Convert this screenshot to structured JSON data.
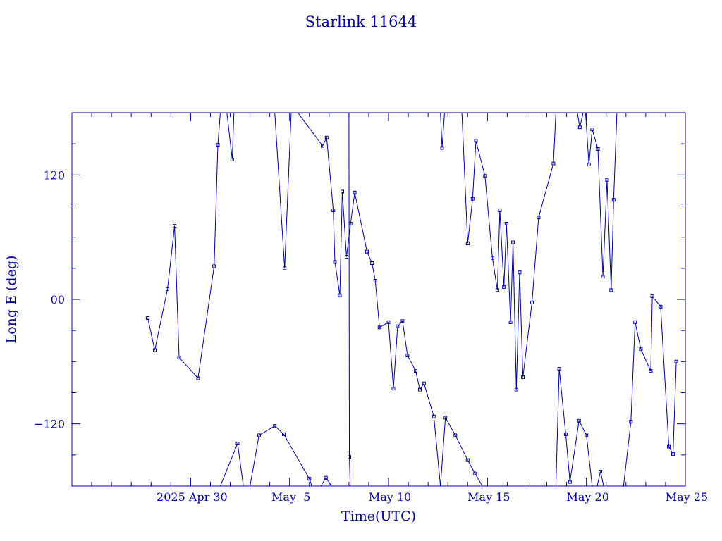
{
  "chart_data": {
    "type": "line",
    "title": "Starlink 11644",
    "xlabel": "Time(UTC)",
    "ylabel": "Long E (deg)",
    "xlim": [
      "2025-04-24",
      "2025-05-25"
    ],
    "ylim": [
      -180,
      180
    ],
    "x_ticks": [
      "2025-04-30",
      "2025-05-05",
      "2025-05-10",
      "2025-05-15",
      "2025-05-20",
      "2025-05-25"
    ],
    "x_tick_labels": [
      "2025 Apr 30",
      "May  5",
      "May 10",
      "May 15",
      "May 20",
      "May 25"
    ],
    "y_ticks": [
      -120,
      0,
      120
    ],
    "y_tick_labels": [
      "−120",
      "00",
      "120"
    ],
    "grid": false,
    "color": "#00009b",
    "marker": "open-square",
    "series": [
      {
        "points": [
          [
            "2025-04-27T20:00",
            -18
          ],
          [
            "2025-04-28T04:30",
            -49
          ],
          [
            "2025-04-28T20:00",
            10
          ],
          [
            "2025-04-29T04:30",
            71
          ],
          [
            "2025-04-29T10:00",
            -56
          ],
          [
            "2025-04-30T09:00",
            -76
          ],
          [
            "2025-05-01T04:30",
            32
          ],
          [
            "2025-05-01T09:00",
            149
          ],
          [
            "2025-05-01T12:00",
            180
          ]
        ]
      },
      {
        "points": [
          [
            "2025-05-01T20:00",
            180
          ],
          [
            "2025-05-02T02:30",
            135
          ],
          [
            "2025-05-02T04:30",
            180
          ]
        ]
      },
      {
        "points": [
          [
            "2025-05-04T06:00",
            180
          ],
          [
            "2025-05-04T18:00",
            30
          ],
          [
            "2025-05-05T02:00",
            180
          ]
        ]
      },
      {
        "points": [
          [
            "2025-05-05T10:00",
            180
          ],
          [
            "2025-05-06T16:00",
            148
          ],
          [
            "2025-05-06T21:00",
            156
          ],
          [
            "2025-05-07T05:00",
            86
          ],
          [
            "2025-05-07T07:00",
            36
          ],
          [
            "2025-05-07T13:00",
            4
          ],
          [
            "2025-05-07T16:00",
            104
          ],
          [
            "2025-05-07T21:00",
            41
          ],
          [
            "2025-05-08T02:00",
            73
          ],
          [
            "2025-05-08T07:00",
            103
          ],
          [
            "2025-05-08T22:00",
            46
          ],
          [
            "2025-05-09T04:00",
            35
          ],
          [
            "2025-05-09T08:00",
            18
          ],
          [
            "2025-05-09T13:00",
            -27
          ],
          [
            "2025-05-10T00:00",
            -22
          ],
          [
            "2025-05-10T06:00",
            -86
          ],
          [
            "2025-05-10T11:00",
            -26
          ],
          [
            "2025-05-10T17:00",
            -21
          ],
          [
            "2025-05-10T23:00",
            -54
          ],
          [
            "2025-05-11T09:00",
            -69
          ],
          [
            "2025-05-11T14:00",
            -87
          ],
          [
            "2025-05-11T19:00",
            -81
          ],
          [
            "2025-05-12T07:00",
            -113
          ],
          [
            "2025-05-12T15:00",
            -180
          ]
        ]
      },
      {
        "points": [
          [
            "2025-05-12T15:00",
            180
          ],
          [
            "2025-05-12T17:00",
            146
          ],
          [
            "2025-05-12T20:00",
            180
          ]
        ]
      },
      {
        "points": [
          [
            "2025-05-13T17:00",
            180
          ],
          [
            "2025-05-14T00:00",
            54
          ],
          [
            "2025-05-14T06:00",
            97
          ],
          [
            "2025-05-14T10:00",
            153
          ],
          [
            "2025-05-14T21:00",
            119
          ],
          [
            "2025-05-15T06:00",
            40
          ],
          [
            "2025-05-15T12:00",
            9
          ],
          [
            "2025-05-15T15:00",
            86
          ],
          [
            "2025-05-15T20:00",
            12
          ],
          [
            "2025-05-15T23:00",
            73
          ],
          [
            "2025-05-16T04:00",
            -22
          ],
          [
            "2025-05-16T07:00",
            55
          ],
          [
            "2025-05-16T11:00",
            -87
          ],
          [
            "2025-05-16T15:00",
            26
          ],
          [
            "2025-05-16T19:00",
            -75
          ],
          [
            "2025-05-17T06:00",
            -3
          ],
          [
            "2025-05-17T14:00",
            79
          ],
          [
            "2025-05-18T08:00",
            131
          ],
          [
            "2025-05-18T11:00",
            180
          ]
        ]
      },
      {
        "points": [
          [
            "2025-05-19T13:00",
            180
          ],
          [
            "2025-05-19T16:00",
            166
          ],
          [
            "2025-05-19T20:00",
            180
          ]
        ]
      },
      {
        "points": [
          [
            "2025-05-19T23:00",
            180
          ],
          [
            "2025-05-20T03:00",
            130
          ],
          [
            "2025-05-20T07:00",
            164
          ],
          [
            "2025-05-20T14:00",
            145
          ],
          [
            "2025-05-20T20:00",
            22
          ],
          [
            "2025-05-21T01:00",
            115
          ],
          [
            "2025-05-21T06:00",
            9
          ],
          [
            "2025-05-21T09:00",
            96
          ],
          [
            "2025-05-21T13:00",
            180
          ]
        ]
      },
      {
        "points": [
          [
            "2025-05-08T00:00",
            180
          ],
          [
            "2025-05-08T00:30",
            -152
          ],
          [
            "2025-05-08T01:30",
            -180
          ]
        ]
      },
      {
        "points": [
          [
            "2025-05-01T12:00",
            -180
          ],
          [
            "2025-05-02T09:00",
            -139
          ],
          [
            "2025-05-02T16:00",
            -180
          ]
        ]
      },
      {
        "points": [
          [
            "2025-05-03T00:00",
            -180
          ],
          [
            "2025-05-03T11:00",
            -131
          ],
          [
            "2025-05-04T06:00",
            -122
          ],
          [
            "2025-05-04T17:00",
            -130
          ],
          [
            "2025-05-06T00:00",
            -173
          ],
          [
            "2025-05-06T03:00",
            -180
          ]
        ]
      },
      {
        "points": [
          [
            "2025-05-06T14:00",
            -180
          ],
          [
            "2025-05-06T20:00",
            -172
          ],
          [
            "2025-05-07T03:00",
            -180
          ]
        ]
      },
      {
        "points": [
          [
            "2025-05-12T15:00",
            -180
          ],
          [
            "2025-05-12T21:00",
            -114
          ],
          [
            "2025-05-13T09:00",
            -131
          ],
          [
            "2025-05-14T00:00",
            -155
          ],
          [
            "2025-05-14T09:00",
            -168
          ],
          [
            "2025-05-14T18:00",
            -180
          ]
        ]
      },
      {
        "points": [
          [
            "2025-05-18T11:00",
            -180
          ],
          [
            "2025-05-18T15:00",
            -67
          ],
          [
            "2025-05-18T23:00",
            -130
          ],
          [
            "2025-05-19T04:00",
            -176
          ],
          [
            "2025-05-19T15:00",
            -117
          ],
          [
            "2025-05-20T00:00",
            -131
          ],
          [
            "2025-05-20T07:00",
            -180
          ]
        ]
      },
      {
        "points": [
          [
            "2025-05-20T13:00",
            -180
          ],
          [
            "2025-05-20T17:00",
            -166
          ],
          [
            "2025-05-20T21:00",
            -180
          ]
        ]
      },
      {
        "points": [
          [
            "2025-05-21T21:00",
            -180
          ],
          [
            "2025-05-22T06:00",
            -118
          ],
          [
            "2025-05-22T11:00",
            -22
          ],
          [
            "2025-05-22T18:00",
            -48
          ],
          [
            "2025-05-23T06:00",
            -69
          ],
          [
            "2025-05-23T08:00",
            3
          ],
          [
            "2025-05-23T18:00",
            -7
          ],
          [
            "2025-05-24T04:00",
            -142
          ],
          [
            "2025-05-24T09:00",
            -149
          ],
          [
            "2025-05-24T13:00",
            -60
          ]
        ]
      }
    ]
  }
}
